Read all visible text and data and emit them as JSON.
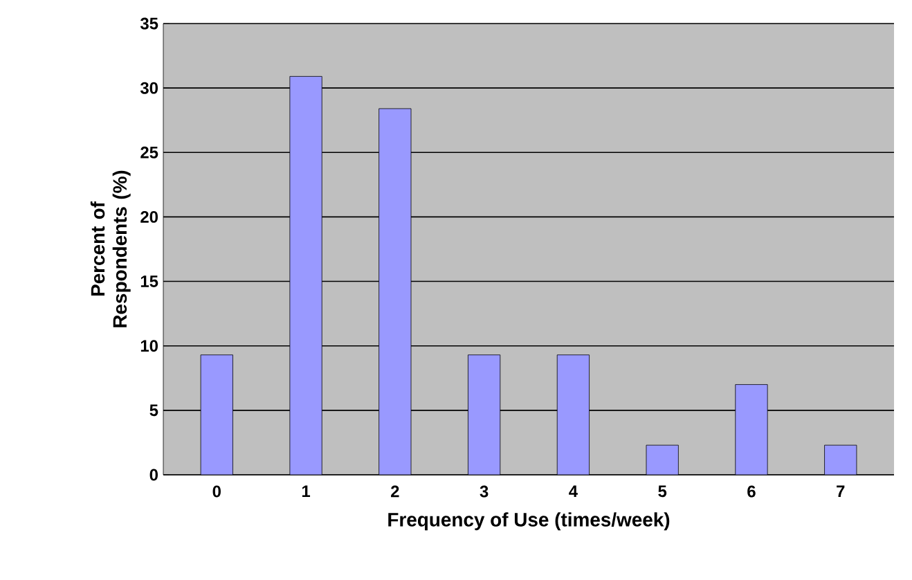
{
  "chart_data": {
    "type": "bar",
    "xlabel": "Frequency of Use (times/week)",
    "ylabel": "Percent of Respondents (%)",
    "categories": [
      "0",
      "1",
      "2",
      "3",
      "4",
      "5",
      "6",
      "7"
    ],
    "values": [
      9.3,
      30.9,
      28.4,
      9.3,
      9.3,
      2.3,
      7.0,
      2.3
    ],
    "color": "#9999ff",
    "ylim": [
      0,
      35
    ],
    "yticks": [
      0,
      5,
      10,
      15,
      20,
      25,
      30,
      35
    ],
    "grid": "y"
  }
}
